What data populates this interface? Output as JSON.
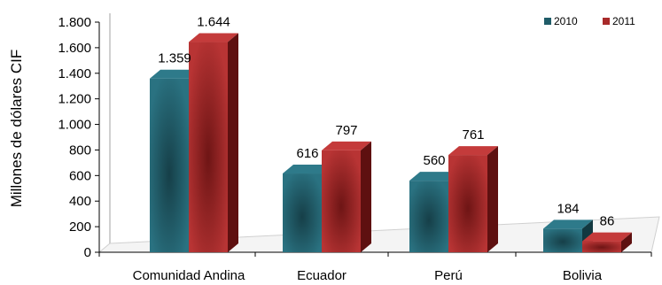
{
  "chart_data": {
    "type": "bar",
    "title": "",
    "xlabel": "",
    "ylabel": "Millones de dólares CIF",
    "categories": [
      "Comunidad Andina",
      "Ecuador",
      "Perú",
      "Bolivia"
    ],
    "series": [
      {
        "name": "2010",
        "values": [
          1359,
          616,
          560,
          184
        ],
        "labels": [
          "1.359",
          "616",
          "560",
          "184"
        ],
        "color": "#1f5c68"
      },
      {
        "name": "2011",
        "values": [
          1644,
          797,
          761,
          86
        ],
        "labels": [
          "1.644",
          "797",
          "761",
          "86"
        ],
        "color": "#a82a2a"
      }
    ],
    "ylim": [
      0,
      1800
    ],
    "yticks": [
      0,
      200,
      400,
      600,
      800,
      1000,
      1200,
      1400,
      1600,
      1800
    ],
    "ytick_labels": [
      "0",
      "200",
      "400",
      "600",
      "800",
      "1.000",
      "1.200",
      "1.400",
      "1.600",
      "1.800"
    ],
    "grid": false,
    "legend_position": "top-right",
    "style": "3d-clustered-columns"
  }
}
